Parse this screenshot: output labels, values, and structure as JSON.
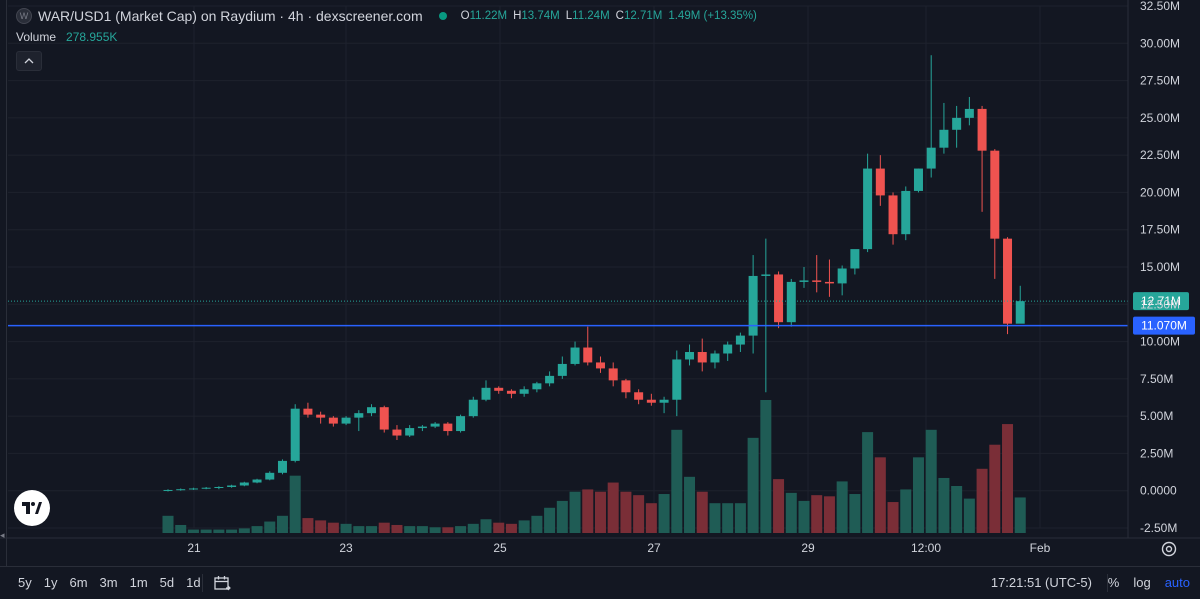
{
  "header": {
    "symbol_icon": "W",
    "title": "WAR/USD1 (Market Cap) on Raydium · 4h · dexscreener.com",
    "ohlc": [
      {
        "k": "O",
        "v": "11.22M"
      },
      {
        "k": "H",
        "v": "13.74M"
      },
      {
        "k": "L",
        "v": "11.24M"
      },
      {
        "k": "C",
        "v": "12.71M"
      }
    ],
    "change": "1.49M (+13.35%)",
    "volume_label": "Volume",
    "volume_value": "278.955K",
    "collapse_icon": "chevron-up-icon"
  },
  "colors": {
    "background": "#131722",
    "up": "#26a69a",
    "down": "#ef5350",
    "vol_up": "#1f5c55",
    "vol_down": "#7a2e37",
    "hline": "#2962ff",
    "grid": "#1e222d"
  },
  "bottom_bar": {
    "ranges": [
      "5y",
      "1y",
      "6m",
      "3m",
      "1m",
      "5d",
      "1d"
    ],
    "clock": "17:21:51 (UTC-5)",
    "percent": "%",
    "log": "log",
    "auto": "auto"
  },
  "chart_data": {
    "type": "candlestick",
    "title": "WAR/USD1 (Market Cap) on Raydium · 4h · dexscreener.com",
    "price_axis_labels": [
      "32.50M",
      "30.00M",
      "27.50M",
      "25.00M",
      "22.50M",
      "20.00M",
      "17.50M",
      "15.00M",
      "12.50M",
      "10.00M",
      "7.50M",
      "5.00M",
      "2.50M",
      "0.0000",
      "-2.50M"
    ],
    "price_axis_values": [
      32.5,
      30,
      27.5,
      25,
      22.5,
      20,
      17.5,
      15,
      12.5,
      10,
      7.5,
      5,
      2.5,
      0,
      -2.5
    ],
    "ylim": [
      -2.5,
      32.5
    ],
    "x_axis_labels": [
      "21",
      "23",
      "25",
      "27",
      "29",
      "12:00",
      "Feb"
    ],
    "last_price_label": "12.71M",
    "last_price": 12.71,
    "hline_label": "11.070M",
    "hline_value": 11.07,
    "candles": [
      {
        "o": 0,
        "h": 0.1,
        "l": -0.05,
        "c": 0.05
      },
      {
        "o": 0.05,
        "h": 0.15,
        "l": 0,
        "c": 0.1
      },
      {
        "o": 0.1,
        "h": 0.2,
        "l": 0.05,
        "c": 0.15
      },
      {
        "o": 0.15,
        "h": 0.25,
        "l": 0.1,
        "c": 0.2
      },
      {
        "o": 0.2,
        "h": 0.3,
        "l": 0.1,
        "c": 0.25
      },
      {
        "o": 0.25,
        "h": 0.4,
        "l": 0.2,
        "c": 0.35
      },
      {
        "o": 0.35,
        "h": 0.6,
        "l": 0.3,
        "c": 0.55
      },
      {
        "o": 0.55,
        "h": 0.8,
        "l": 0.5,
        "c": 0.75
      },
      {
        "o": 0.75,
        "h": 1.3,
        "l": 0.7,
        "c": 1.2
      },
      {
        "o": 1.2,
        "h": 2.1,
        "l": 1.1,
        "c": 2.0
      },
      {
        "o": 2.0,
        "h": 5.8,
        "l": 1.9,
        "c": 5.5
      },
      {
        "o": 5.5,
        "h": 5.9,
        "l": 4.9,
        "c": 5.1
      },
      {
        "o": 5.1,
        "h": 5.3,
        "l": 4.5,
        "c": 4.9
      },
      {
        "o": 4.9,
        "h": 5.0,
        "l": 4.3,
        "c": 4.5
      },
      {
        "o": 4.5,
        "h": 5.0,
        "l": 4.4,
        "c": 4.9
      },
      {
        "o": 4.9,
        "h": 5.4,
        "l": 4.0,
        "c": 5.2
      },
      {
        "o": 5.2,
        "h": 5.8,
        "l": 5.0,
        "c": 5.6
      },
      {
        "o": 5.6,
        "h": 5.7,
        "l": 3.9,
        "c": 4.1
      },
      {
        "o": 4.1,
        "h": 4.4,
        "l": 3.4,
        "c": 3.7
      },
      {
        "o": 3.7,
        "h": 4.4,
        "l": 3.6,
        "c": 4.2
      },
      {
        "o": 4.2,
        "h": 4.4,
        "l": 4.0,
        "c": 4.3
      },
      {
        "o": 4.3,
        "h": 4.6,
        "l": 4.2,
        "c": 4.5
      },
      {
        "o": 4.5,
        "h": 4.6,
        "l": 3.7,
        "c": 4.0
      },
      {
        "o": 4.0,
        "h": 5.1,
        "l": 3.9,
        "c": 5.0
      },
      {
        "o": 5.0,
        "h": 6.3,
        "l": 4.9,
        "c": 6.1
      },
      {
        "o": 6.1,
        "h": 7.4,
        "l": 6.0,
        "c": 6.9
      },
      {
        "o": 6.9,
        "h": 7.0,
        "l": 6.5,
        "c": 6.7
      },
      {
        "o": 6.7,
        "h": 6.8,
        "l": 6.2,
        "c": 6.5
      },
      {
        "o": 6.5,
        "h": 7.0,
        "l": 6.3,
        "c": 6.8
      },
      {
        "o": 6.8,
        "h": 7.3,
        "l": 6.6,
        "c": 7.2
      },
      {
        "o": 7.2,
        "h": 8.0,
        "l": 7.0,
        "c": 7.7
      },
      {
        "o": 7.7,
        "h": 9.0,
        "l": 7.5,
        "c": 8.5
      },
      {
        "o": 8.5,
        "h": 10.0,
        "l": 8.4,
        "c": 9.6
      },
      {
        "o": 9.6,
        "h": 11.0,
        "l": 8.4,
        "c": 8.6
      },
      {
        "o": 8.6,
        "h": 9.0,
        "l": 7.9,
        "c": 8.2
      },
      {
        "o": 8.2,
        "h": 8.6,
        "l": 7.0,
        "c": 7.4
      },
      {
        "o": 7.4,
        "h": 7.5,
        "l": 6.2,
        "c": 6.6
      },
      {
        "o": 6.6,
        "h": 6.8,
        "l": 5.8,
        "c": 6.1
      },
      {
        "o": 6.1,
        "h": 6.5,
        "l": 5.7,
        "c": 5.9
      },
      {
        "o": 5.9,
        "h": 6.3,
        "l": 5.2,
        "c": 6.1
      },
      {
        "o": 6.1,
        "h": 9.4,
        "l": 5.0,
        "c": 8.8
      },
      {
        "o": 8.8,
        "h": 9.8,
        "l": 8.4,
        "c": 9.3
      },
      {
        "o": 9.3,
        "h": 10.2,
        "l": 8.0,
        "c": 8.6
      },
      {
        "o": 8.6,
        "h": 9.4,
        "l": 8.2,
        "c": 9.2
      },
      {
        "o": 9.2,
        "h": 10.0,
        "l": 8.7,
        "c": 9.8
      },
      {
        "o": 9.8,
        "h": 10.6,
        "l": 9.3,
        "c": 10.4
      },
      {
        "o": 10.4,
        "h": 15.8,
        "l": 9.2,
        "c": 14.4
      },
      {
        "o": 14.4,
        "h": 16.9,
        "l": 6.6,
        "c": 14.5
      },
      {
        "o": 14.5,
        "h": 14.7,
        "l": 10.9,
        "c": 11.3
      },
      {
        "o": 11.3,
        "h": 14.2,
        "l": 11.0,
        "c": 14.0
      },
      {
        "o": 14.0,
        "h": 15.0,
        "l": 13.6,
        "c": 14.1
      },
      {
        "o": 14.1,
        "h": 15.8,
        "l": 13.3,
        "c": 14.0
      },
      {
        "o": 14.0,
        "h": 15.5,
        "l": 13.0,
        "c": 13.9
      },
      {
        "o": 13.9,
        "h": 15.1,
        "l": 13.1,
        "c": 14.9
      },
      {
        "o": 14.9,
        "h": 16.0,
        "l": 14.5,
        "c": 16.2
      },
      {
        "o": 16.2,
        "h": 22.6,
        "l": 16.0,
        "c": 21.6
      },
      {
        "o": 21.6,
        "h": 22.5,
        "l": 19.1,
        "c": 19.8
      },
      {
        "o": 19.8,
        "h": 20.0,
        "l": 16.5,
        "c": 17.2
      },
      {
        "o": 17.2,
        "h": 20.4,
        "l": 16.8,
        "c": 20.1
      },
      {
        "o": 20.1,
        "h": 21.6,
        "l": 20.0,
        "c": 21.6
      },
      {
        "o": 21.6,
        "h": 29.2,
        "l": 21.0,
        "c": 23.0
      },
      {
        "o": 23.0,
        "h": 26.0,
        "l": 22.6,
        "c": 24.2
      },
      {
        "o": 24.2,
        "h": 25.8,
        "l": 23.0,
        "c": 25.0
      },
      {
        "o": 25.0,
        "h": 26.4,
        "l": 24.5,
        "c": 25.6
      },
      {
        "o": 25.6,
        "h": 25.8,
        "l": 18.7,
        "c": 22.8
      },
      {
        "o": 22.8,
        "h": 22.9,
        "l": 14.2,
        "c": 16.9
      },
      {
        "o": 16.9,
        "h": 17.0,
        "l": 10.5,
        "c": 11.2
      },
      {
        "o": 11.2,
        "h": 13.74,
        "l": 11.24,
        "c": 12.71
      }
    ],
    "volumes": [
      1.5,
      0.7,
      0.3,
      0.3,
      0.3,
      0.3,
      0.4,
      0.6,
      1.0,
      1.5,
      5.0,
      1.3,
      1.1,
      0.9,
      0.8,
      0.6,
      0.6,
      0.9,
      0.7,
      0.6,
      0.6,
      0.5,
      0.5,
      0.6,
      0.8,
      1.2,
      0.9,
      0.8,
      1.1,
      1.5,
      2.2,
      2.8,
      3.6,
      3.8,
      3.6,
      4.4,
      3.6,
      3.3,
      2.6,
      3.4,
      9.0,
      4.9,
      3.6,
      2.6,
      2.6,
      2.6,
      8.3,
      11.6,
      4.7,
      3.5,
      2.8,
      3.3,
      3.2,
      4.5,
      3.4,
      8.8,
      6.6,
      2.7,
      3.8,
      6.6,
      9.0,
      4.8,
      4.1,
      3.0,
      5.6,
      7.7,
      9.5,
      3.1
    ]
  }
}
